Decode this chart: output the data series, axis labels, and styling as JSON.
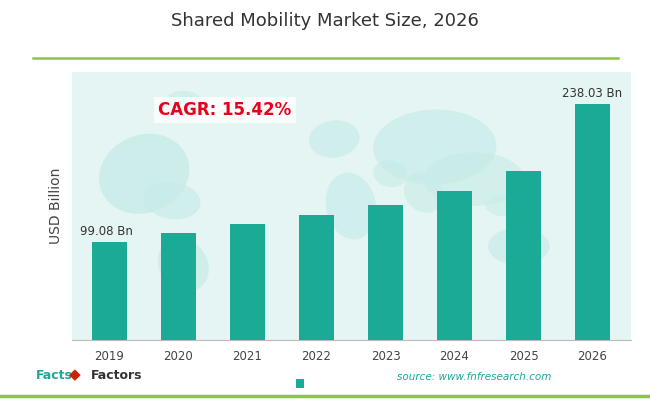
{
  "title": "Shared Mobility Market Size, 2026",
  "years": [
    "2019",
    "2020",
    "2021",
    "2022",
    "2023",
    "2024",
    "2025",
    "2026"
  ],
  "values": [
    99.08,
    108.0,
    116.5,
    126.0,
    136.5,
    150.0,
    170.0,
    238.03
  ],
  "bar_color": "#1aaa96",
  "background_color": "#ffffff",
  "plot_bg_color": "#e5f5f3",
  "ylabel": "USD Billion",
  "cagr_text": "CAGR: 15.42%",
  "cagr_color": "#e8001c",
  "first_label": "99.08 Bn",
  "last_label": "238.03 Bn",
  "source_text": "source: www.fnfresearch.com",
  "title_fontsize": 13,
  "bar_label_fontsize": 8.5,
  "ylabel_fontsize": 10,
  "tick_fontsize": 8.5,
  "top_border_color_left": "#8dc63f",
  "top_border_color_right": "#8dc63f",
  "world_map_color": "#c8ece8",
  "ylim_max": 270,
  "bar_width": 0.52
}
